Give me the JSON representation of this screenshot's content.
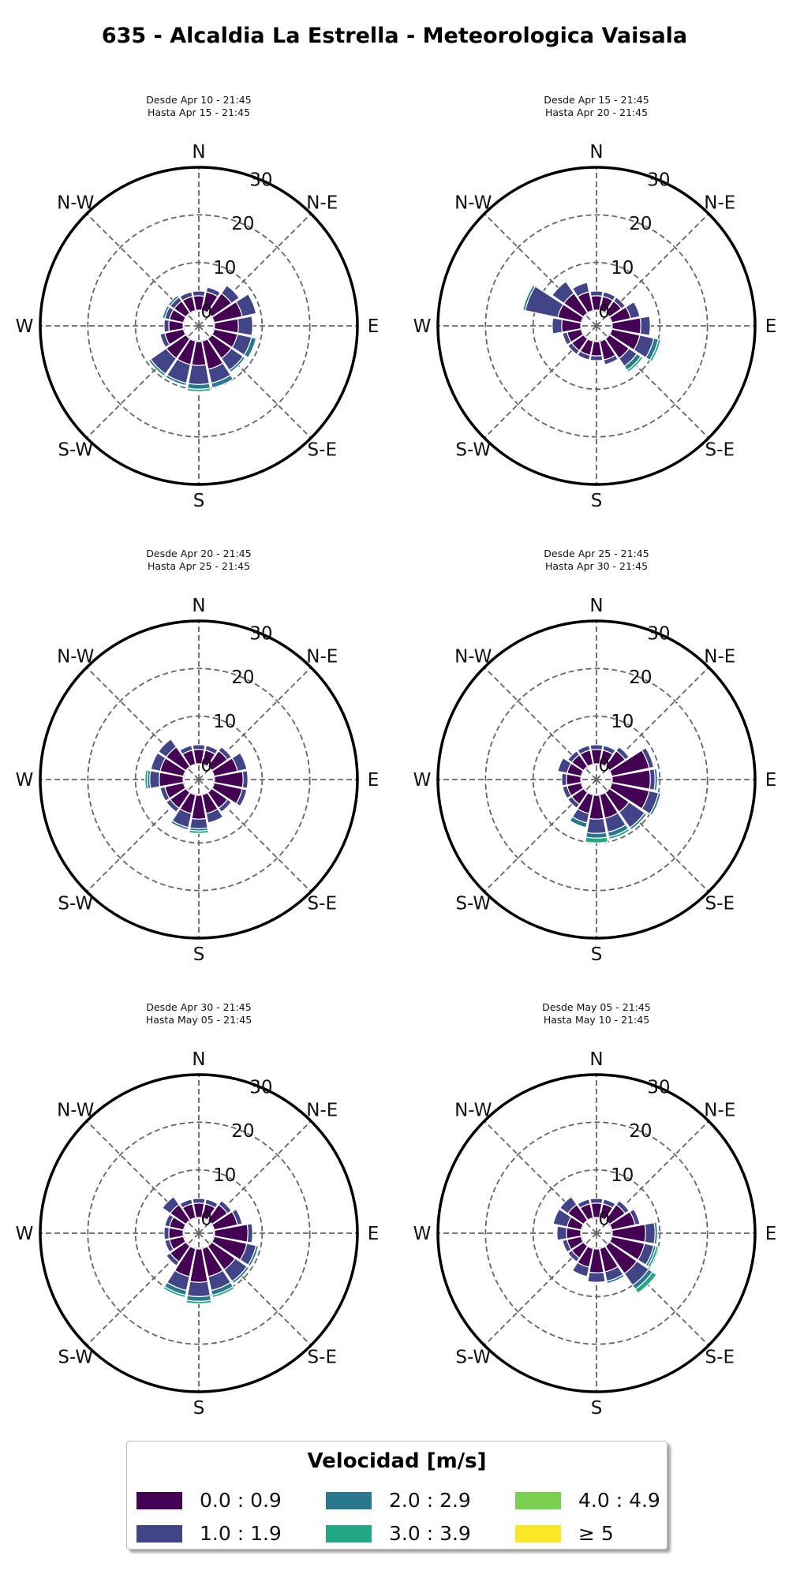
{
  "title": "635 - Alcaldia La Estrella - Meteorologica Vaisala",
  "legend": {
    "title": "Velocidad [m/s]",
    "items": [
      {
        "label": "0.0 : 0.9",
        "color": "#440154"
      },
      {
        "label": "2.0 : 2.9",
        "color": "#2a788e"
      },
      {
        "label": "4.0 : 4.9",
        "color": "#7ad151"
      },
      {
        "label": "1.0 : 1.9",
        "color": "#414487"
      },
      {
        "label": "3.0 : 3.9",
        "color": "#22a884"
      },
      {
        "label": "≥  5",
        "color": "#fde725"
      }
    ]
  },
  "chart_data": [
    {
      "type": "windrose",
      "subtitle": [
        "Desde Apr 10 - 21:45",
        "Hasta Apr 15 - 21:45"
      ],
      "directions": [
        "N",
        "N-E",
        "E",
        "S-E",
        "S",
        "S-W",
        "W",
        "N-W"
      ],
      "radial_ticks": [
        0,
        10,
        20,
        30
      ],
      "rmax": 30,
      "sectors_deg": [
        0,
        22.5,
        45,
        67.5,
        90,
        112.5,
        135,
        157.5,
        180,
        202.5,
        225,
        247.5,
        270,
        292.5,
        315,
        337.5
      ],
      "series": [
        {
          "name": "0.0 : 0.9",
          "values": [
            3,
            4,
            5,
            6,
            5,
            5,
            5,
            6,
            5,
            5,
            5,
            4,
            3,
            3,
            3,
            3
          ]
        },
        {
          "name": "1.0 : 1.9",
          "values": [
            1,
            1,
            2,
            3,
            3,
            3,
            3,
            3,
            4,
            4,
            4,
            1,
            1,
            1,
            1,
            1
          ]
        },
        {
          "name": "2.0 : 2.9",
          "values": [
            0,
            0,
            0,
            0,
            0,
            1,
            0.5,
            1,
            1,
            0.5,
            0.5,
            0,
            0,
            0.5,
            0.5,
            0
          ]
        },
        {
          "name": "3.0 : 3.9",
          "values": [
            0,
            0,
            0,
            0,
            0,
            0,
            0,
            0,
            0.5,
            0,
            0,
            0,
            0,
            0,
            0,
            0
          ]
        }
      ]
    },
    {
      "type": "windrose",
      "subtitle": [
        "Desde Apr 15 - 21:45",
        "Hasta Apr 20 - 21:45"
      ],
      "directions": [
        "N",
        "N-E",
        "E",
        "S-E",
        "S",
        "S-W",
        "W",
        "N-W"
      ],
      "radial_ticks": [
        0,
        10,
        20,
        30
      ],
      "rmax": 30,
      "sectors_deg": [
        0,
        22.5,
        45,
        67.5,
        90,
        112.5,
        135,
        157.5,
        180,
        202.5,
        225,
        247.5,
        270,
        292.5,
        315,
        337.5
      ],
      "series": [
        {
          "name": "0.0 : 0.9",
          "values": [
            3,
            3,
            3,
            4,
            6,
            6,
            5,
            4,
            3,
            3,
            3,
            3,
            4,
            5,
            5,
            4
          ]
        },
        {
          "name": "1.0 : 1.9",
          "values": [
            1,
            1,
            1,
            2,
            2,
            3,
            2,
            1,
            1,
            1,
            1,
            1,
            2,
            7,
            3,
            2
          ]
        },
        {
          "name": "2.0 : 2.9",
          "values": [
            0,
            0,
            0,
            0,
            0,
            1,
            1,
            0,
            0,
            0,
            0,
            0,
            0,
            0.5,
            0,
            0
          ]
        },
        {
          "name": "3.0 : 3.9",
          "values": [
            0,
            0,
            0,
            0,
            0,
            0.5,
            0.5,
            0,
            0,
            0,
            0,
            0,
            0,
            0,
            0,
            0
          ]
        }
      ]
    },
    {
      "type": "windrose",
      "subtitle": [
        "Desde Apr 20 - 21:45",
        "Hasta Apr 25 - 21:45"
      ],
      "directions": [
        "N",
        "N-E",
        "E",
        "S-E",
        "S",
        "S-W",
        "W",
        "N-W"
      ],
      "radial_ticks": [
        0,
        10,
        20,
        30
      ],
      "rmax": 30,
      "sectors_deg": [
        0,
        22.5,
        45,
        67.5,
        90,
        112.5,
        135,
        157.5,
        180,
        202.5,
        225,
        247.5,
        270,
        292.5,
        315,
        337.5
      ],
      "series": [
        {
          "name": "0.0 : 0.9",
          "values": [
            3,
            3,
            4,
            5,
            6,
            6,
            4,
            4,
            5,
            4,
            4,
            4,
            5,
            5,
            5,
            3
          ]
        },
        {
          "name": "1.0 : 1.9",
          "values": [
            1,
            1,
            1,
            2,
            1,
            1,
            1,
            2,
            2,
            3,
            1,
            1,
            2,
            2,
            2,
            1
          ]
        },
        {
          "name": "2.0 : 2.9",
          "values": [
            0,
            0,
            0,
            0,
            0,
            0,
            0,
            0,
            0.5,
            0.5,
            0,
            0,
            0.5,
            0,
            0,
            0
          ]
        },
        {
          "name": "3.0 : 3.9",
          "values": [
            0,
            0,
            0,
            0,
            0,
            0,
            0,
            0,
            0.5,
            0,
            0,
            0,
            0.5,
            0,
            0,
            0
          ]
        }
      ]
    },
    {
      "type": "windrose",
      "subtitle": [
        "Desde Apr 25 - 21:45",
        "Hasta Apr 30 - 21:45"
      ],
      "directions": [
        "N",
        "N-E",
        "E",
        "S-E",
        "S",
        "S-W",
        "W",
        "N-W"
      ],
      "radial_ticks": [
        0,
        10,
        20,
        30
      ],
      "rmax": 30,
      "sectors_deg": [
        0,
        22.5,
        45,
        67.5,
        90,
        112.5,
        135,
        157.5,
        180,
        202.5,
        225,
        247.5,
        270,
        292.5,
        315,
        337.5
      ],
      "series": [
        {
          "name": "0.0 : 0.9",
          "values": [
            3,
            3,
            4,
            8,
            8,
            8,
            5,
            5,
            5,
            4,
            3,
            3,
            3,
            3,
            3,
            3
          ]
        },
        {
          "name": "1.0 : 1.9",
          "values": [
            1,
            1,
            1,
            1,
            1,
            2,
            4,
            3,
            3,
            2,
            1,
            1,
            1,
            2,
            1,
            1
          ]
        },
        {
          "name": "2.0 : 2.9",
          "values": [
            0,
            0,
            0,
            0,
            0.5,
            0.5,
            0.5,
            1,
            1,
            1,
            0,
            0,
            0,
            0,
            0,
            0
          ]
        },
        {
          "name": "3.0 : 3.9",
          "values": [
            0,
            0,
            0,
            0,
            0,
            0,
            0,
            0.5,
            1,
            0,
            0,
            0,
            0,
            0,
            0,
            0
          ]
        }
      ]
    },
    {
      "type": "windrose",
      "subtitle": [
        "Desde Apr 30 - 21:45",
        "Hasta May 05 - 21:45"
      ],
      "directions": [
        "N",
        "N-E",
        "E",
        "S-E",
        "S",
        "S-W",
        "W",
        "N-W"
      ],
      "radial_ticks": [
        0,
        10,
        20,
        30
      ],
      "rmax": 30,
      "sectors_deg": [
        0,
        22.5,
        45,
        67.5,
        90,
        112.5,
        135,
        157.5,
        180,
        202.5,
        225,
        247.5,
        270,
        292.5,
        315,
        337.5
      ],
      "series": [
        {
          "name": "0.0 : 0.9",
          "values": [
            3,
            3,
            4,
            5,
            7,
            7,
            6,
            6,
            7,
            6,
            4,
            3,
            3,
            3,
            4,
            3
          ]
        },
        {
          "name": "1.0 : 1.9",
          "values": [
            1,
            1,
            1,
            1,
            1,
            2,
            3,
            3,
            3,
            3,
            1,
            1,
            1,
            1,
            2,
            1
          ]
        },
        {
          "name": "2.0 : 2.9",
          "values": [
            0,
            0,
            0,
            0,
            0,
            0.5,
            0.5,
            1,
            1,
            1,
            0,
            0,
            0,
            0,
            0,
            0
          ]
        },
        {
          "name": "3.0 : 3.9",
          "values": [
            0,
            0,
            0,
            0,
            0,
            0,
            0,
            0.5,
            0.5,
            0.5,
            0,
            0,
            0,
            0,
            0,
            0
          ]
        }
      ]
    },
    {
      "type": "windrose",
      "subtitle": [
        "Desde May 05 - 21:45",
        "Hasta May 10 - 21:45"
      ],
      "directions": [
        "N",
        "N-E",
        "E",
        "S-E",
        "S",
        "S-W",
        "W",
        "N-W"
      ],
      "radial_ticks": [
        0,
        10,
        20,
        30
      ],
      "rmax": 30,
      "sectors_deg": [
        0,
        22.5,
        45,
        67.5,
        90,
        112.5,
        135,
        157.5,
        180,
        202.5,
        225,
        247.5,
        270,
        292.5,
        315,
        337.5
      ],
      "series": [
        {
          "name": "0.0 : 0.9",
          "values": [
            3,
            3,
            4,
            5,
            7,
            7,
            7,
            5,
            5,
            4,
            3,
            3,
            3,
            3,
            4,
            3
          ]
        },
        {
          "name": "1.0 : 1.9",
          "values": [
            1,
            1,
            1,
            1,
            2,
            2,
            3,
            2,
            2,
            2,
            1,
            1,
            2,
            3,
            2,
            1
          ]
        },
        {
          "name": "2.0 : 2.9",
          "values": [
            0,
            0,
            0,
            0,
            0.5,
            0.5,
            1,
            0.5,
            0,
            0,
            0,
            0,
            0,
            0,
            0,
            0
          ]
        },
        {
          "name": "3.0 : 3.9",
          "values": [
            0,
            0,
            0,
            0,
            0,
            0.5,
            1,
            0,
            0,
            0,
            0,
            0,
            0,
            0,
            0,
            0
          ]
        }
      ]
    }
  ]
}
